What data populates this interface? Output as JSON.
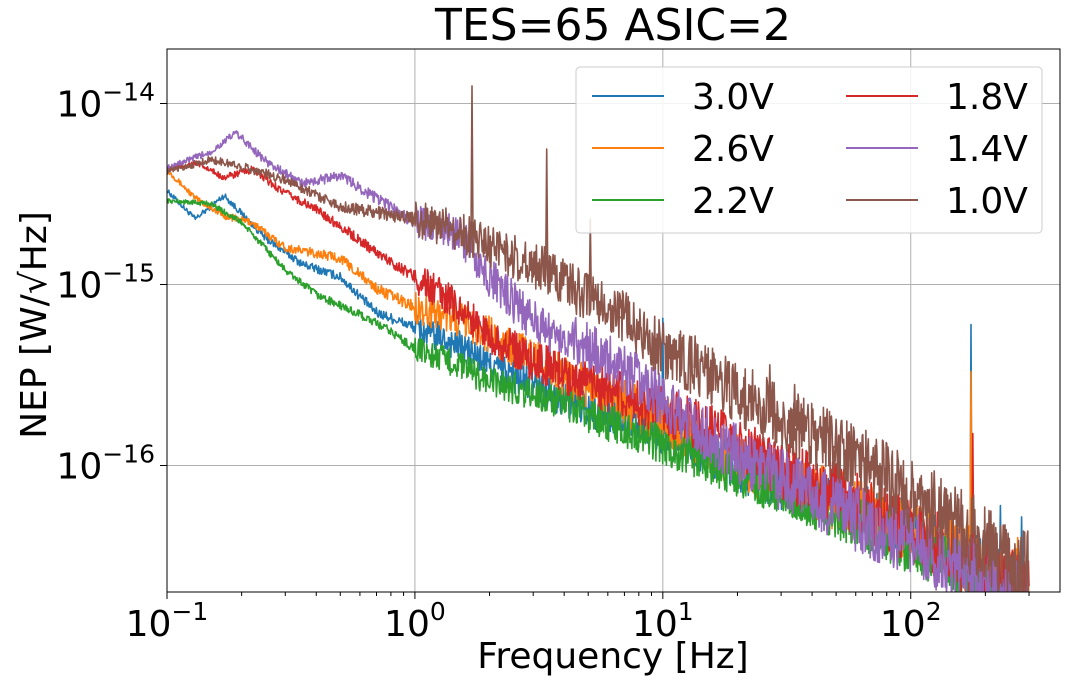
{
  "chart_data": {
    "type": "line",
    "title": "TES=65 ASIC=2",
    "xlabel": "Frequency [Hz]",
    "ylabel": "NEP [W/√Hz]",
    "xscale": "log",
    "yscale": "log",
    "xlim": [
      0.1,
      400
    ],
    "ylim": [
      2e-17,
      2e-14
    ],
    "x_ticks": [
      {
        "value": 0.1,
        "base": "10",
        "exp": "−1"
      },
      {
        "value": 1,
        "base": "10",
        "exp": "0"
      },
      {
        "value": 10,
        "base": "10",
        "exp": "1"
      },
      {
        "value": 100,
        "base": "10",
        "exp": "2"
      }
    ],
    "y_ticks": [
      {
        "value": 1e-16,
        "base": "10",
        "exp": "−16"
      },
      {
        "value": 1e-15,
        "base": "10",
        "exp": "−15"
      },
      {
        "value": 1e-14,
        "base": "10",
        "exp": "−14"
      }
    ],
    "grid": true,
    "legend_position": "top-right",
    "legend_columns": 2,
    "series": [
      {
        "name": "3.0V",
        "color": "#1f77b4",
        "amp": 0.055,
        "slope": 0.72,
        "low_f_value": 3.3e-15,
        "points": [
          [
            0.1,
            3.3e-15
          ],
          [
            0.13,
            2.3e-15
          ],
          [
            0.17,
            3.1e-15
          ],
          [
            0.25,
            1.8e-15
          ],
          [
            0.35,
            1.3e-15
          ],
          [
            0.5,
            1.1e-15
          ],
          [
            0.7,
            7e-16
          ],
          [
            1.0,
            5.8e-16
          ],
          [
            1.5,
            4.6e-16
          ],
          [
            2.0,
            3.6e-16
          ],
          [
            3.0,
            2.8e-16
          ],
          [
            5.0,
            2.1e-16
          ],
          [
            7.0,
            1.8e-16
          ],
          [
            10,
            1.5e-16
          ],
          [
            15,
            1.2e-16
          ],
          [
            20,
            1e-16
          ],
          [
            30,
            8e-17
          ],
          [
            50,
            6.3e-17
          ],
          [
            70,
            5.1e-17
          ],
          [
            100,
            4.3e-17
          ],
          [
            150,
            3.3e-17
          ],
          [
            200,
            2.5e-17
          ],
          [
            300,
            1.9e-17
          ]
        ],
        "spikes": [
          [
            10,
            6.5e-16
          ],
          [
            175,
            6e-16
          ],
          [
            230,
            6e-17
          ],
          [
            280,
            5.2e-17
          ]
        ]
      },
      {
        "name": "2.6V",
        "color": "#ff7f0e",
        "amp": 0.06,
        "slope": 0.72,
        "low_f_value": 4.3e-15,
        "points": [
          [
            0.1,
            4.3e-15
          ],
          [
            0.13,
            3e-15
          ],
          [
            0.17,
            2.4e-15
          ],
          [
            0.22,
            2.2e-15
          ],
          [
            0.3,
            1.6e-15
          ],
          [
            0.5,
            1.4e-15
          ],
          [
            0.7,
            9.5e-16
          ],
          [
            1.0,
            7.5e-16
          ],
          [
            1.5,
            6.4e-16
          ],
          [
            2.0,
            5.3e-16
          ],
          [
            3.0,
            3.9e-16
          ],
          [
            5.0,
            2.7e-16
          ],
          [
            7.0,
            2.2e-16
          ],
          [
            10,
            1.8e-16
          ],
          [
            15,
            1.3e-16
          ],
          [
            20,
            1.05e-16
          ],
          [
            30,
            8.3e-17
          ],
          [
            50,
            6.4e-17
          ],
          [
            70,
            5.2e-17
          ],
          [
            100,
            4.4e-17
          ],
          [
            150,
            3.4e-17
          ],
          [
            200,
            2.6e-17
          ],
          [
            300,
            2e-17
          ]
        ],
        "spikes": [
          [
            175,
            3.3e-16
          ],
          [
            210,
            5e-17
          ],
          [
            270,
            4e-17
          ]
        ]
      },
      {
        "name": "2.2V",
        "color": "#2ca02c",
        "amp": 0.05,
        "slope": 0.72,
        "low_f_value": 2.9e-15,
        "points": [
          [
            0.1,
            2.9e-15
          ],
          [
            0.15,
            2.8e-15
          ],
          [
            0.2,
            2.2e-15
          ],
          [
            0.3,
            1.2e-15
          ],
          [
            0.4,
            8.8e-16
          ],
          [
            0.6,
            6.8e-16
          ],
          [
            0.8,
            5.5e-16
          ],
          [
            1.0,
            4.4e-16
          ],
          [
            1.5,
            3.6e-16
          ],
          [
            2.0,
            2.9e-16
          ],
          [
            3.0,
            2.5e-16
          ],
          [
            5.0,
            1.9e-16
          ],
          [
            7.0,
            1.6e-16
          ],
          [
            10,
            1.3e-16
          ],
          [
            15,
            1.05e-16
          ],
          [
            20,
            9e-17
          ],
          [
            30,
            7.2e-17
          ],
          [
            50,
            5.5e-17
          ],
          [
            70,
            4.5e-17
          ],
          [
            100,
            3.6e-17
          ],
          [
            150,
            2.8e-17
          ],
          [
            200,
            2.2e-17
          ],
          [
            300,
            1.7e-17
          ]
        ],
        "spikes": []
      },
      {
        "name": "1.8V",
        "color": "#d62728",
        "amp": 0.06,
        "slope": 0.72,
        "low_f_value": 4.3e-15,
        "points": [
          [
            0.1,
            4.3e-15
          ],
          [
            0.13,
            4.7e-15
          ],
          [
            0.17,
            3.9e-15
          ],
          [
            0.22,
            4.3e-15
          ],
          [
            0.3,
            3.2e-15
          ],
          [
            0.4,
            2.6e-15
          ],
          [
            0.5,
            2.1e-15
          ],
          [
            0.7,
            1.5e-15
          ],
          [
            1.0,
            1.1e-15
          ],
          [
            1.5,
            7.5e-16
          ],
          [
            2.0,
            5.2e-16
          ],
          [
            3.0,
            3.8e-16
          ],
          [
            5.0,
            2.9e-16
          ],
          [
            7.0,
            2.4e-16
          ],
          [
            10,
            2e-16
          ],
          [
            15,
            1.6e-16
          ],
          [
            20,
            1.3e-16
          ],
          [
            30,
            9.5e-17
          ],
          [
            50,
            7e-17
          ],
          [
            70,
            5.5e-17
          ],
          [
            100,
            4.4e-17
          ],
          [
            150,
            3.3e-17
          ],
          [
            200,
            2.6e-17
          ],
          [
            300,
            2e-17
          ]
        ],
        "spikes": [
          [
            178,
            1.5e-16
          ]
        ]
      },
      {
        "name": "1.4V",
        "color": "#9467bd",
        "amp": 0.065,
        "slope": 0.72,
        "low_f_value": 4.4e-15,
        "points": [
          [
            0.1,
            4.4e-15
          ],
          [
            0.15,
            5.4e-15
          ],
          [
            0.19,
            6.9e-15
          ],
          [
            0.25,
            4.8e-15
          ],
          [
            0.35,
            3.6e-15
          ],
          [
            0.5,
            4e-15
          ],
          [
            0.7,
            3e-15
          ],
          [
            1.0,
            2.2e-15
          ],
          [
            1.5,
            1.9e-15
          ],
          [
            2.0,
            1.1e-15
          ],
          [
            3.0,
            6.2e-16
          ],
          [
            5.0,
            4.6e-16
          ],
          [
            7.0,
            3.4e-16
          ],
          [
            10,
            2.3e-16
          ],
          [
            15,
            1.5e-16
          ],
          [
            20,
            1.15e-16
          ],
          [
            30,
            8.3e-17
          ],
          [
            50,
            6e-17
          ],
          [
            70,
            4.6e-17
          ],
          [
            100,
            3.6e-17
          ],
          [
            150,
            2.8e-17
          ],
          [
            200,
            2.2e-17
          ],
          [
            300,
            1.7e-17
          ]
        ],
        "spikes": []
      },
      {
        "name": "1.0V",
        "color": "#8c564b",
        "amp": 0.07,
        "slope": 0.72,
        "low_f_value": 4.2e-15,
        "points": [
          [
            0.1,
            4.2e-15
          ],
          [
            0.15,
            4.9e-15
          ],
          [
            0.2,
            4.5e-15
          ],
          [
            0.3,
            3.8e-15
          ],
          [
            0.5,
            2.7e-15
          ],
          [
            0.7,
            2.5e-15
          ],
          [
            1.0,
            2.3e-15
          ],
          [
            1.5,
            2e-15
          ],
          [
            2.0,
            1.6e-15
          ],
          [
            3.0,
            1.3e-15
          ],
          [
            5.0,
            8.5e-16
          ],
          [
            7.0,
            6.5e-16
          ],
          [
            10,
            4.3e-16
          ],
          [
            15,
            3.2e-16
          ],
          [
            20,
            2.5e-16
          ],
          [
            30,
            1.8e-16
          ],
          [
            50,
            1.25e-16
          ],
          [
            70,
            9.5e-17
          ],
          [
            100,
            6.8e-17
          ],
          [
            150,
            4.8e-17
          ],
          [
            200,
            3.6e-17
          ],
          [
            300,
            2.6e-17
          ]
        ],
        "spikes": [
          [
            1.7,
            1.25e-14
          ],
          [
            3.4,
            5.6e-15
          ],
          [
            5.1,
            2.3e-15
          ],
          [
            6.8,
            6.5e-16
          ],
          [
            13.5,
            5.2e-16
          ],
          [
            27,
            3.6e-16
          ],
          [
            34,
            2.8e-16
          ],
          [
            50,
            1.8e-16
          ]
        ]
      }
    ]
  }
}
